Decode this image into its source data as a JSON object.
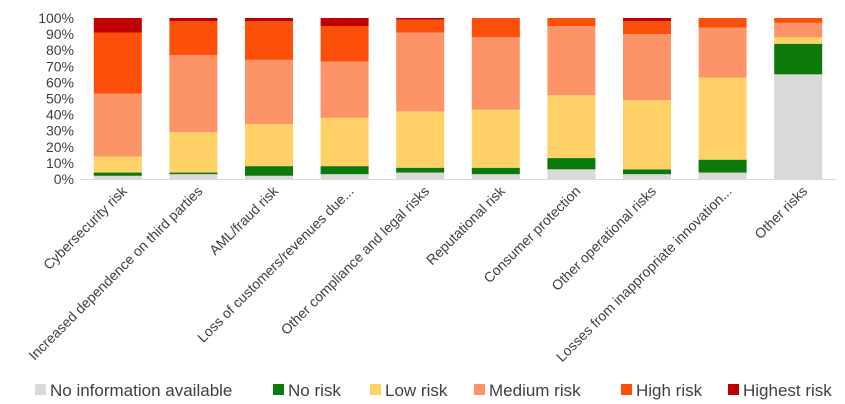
{
  "chart_data": {
    "type": "bar",
    "stacked": true,
    "categories": [
      "Cybersecurity risk",
      "Increased dependence on third parties",
      "AML/fraud risk",
      "Loss of customers/revenues due...",
      "Other compliance and legal risks",
      "Reputational risk",
      "Consumer protection",
      "Other operational risks",
      "Losses from inappropriate innovation...",
      "Other risks"
    ],
    "series": [
      {
        "name": "No information available",
        "color": "#d9d9d9",
        "values": [
          2,
          3,
          2,
          3,
          4,
          3,
          6,
          3,
          4,
          65
        ]
      },
      {
        "name": "No risk",
        "color": "#0b7a0b",
        "values": [
          2,
          1,
          6,
          5,
          3,
          4,
          7,
          3,
          8,
          19
        ]
      },
      {
        "name": "Low risk",
        "color": "#ffd166",
        "values": [
          10,
          25,
          26,
          30,
          35,
          36,
          39,
          43,
          51,
          4
        ]
      },
      {
        "name": "Medium risk",
        "color": "#fc9468",
        "values": [
          39,
          48,
          40,
          35,
          49,
          45,
          43,
          41,
          31,
          9
        ]
      },
      {
        "name": "High risk",
        "color": "#fc4f0a",
        "values": [
          38,
          21,
          24,
          22,
          8,
          12,
          5,
          8,
          6,
          3
        ]
      },
      {
        "name": "Highest risk",
        "color": "#c00000",
        "values": [
          9,
          2,
          2,
          5,
          1,
          0,
          0,
          2,
          0,
          0
        ]
      }
    ],
    "ylim": [
      0,
      100
    ],
    "yticks": [
      "0%",
      "10%",
      "20%",
      "30%",
      "40%",
      "50%",
      "60%",
      "70%",
      "80%",
      "90%",
      "100%"
    ],
    "grid": false,
    "legend_position": "bottom"
  }
}
